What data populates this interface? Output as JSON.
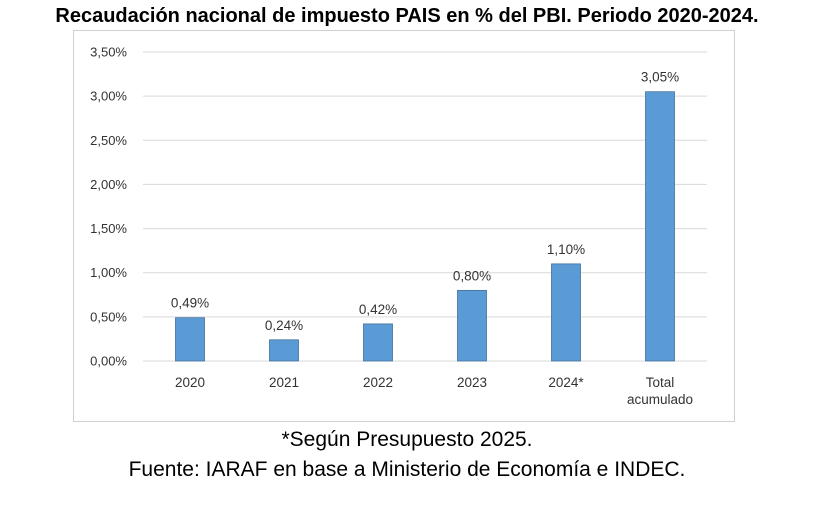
{
  "chart_data": {
    "type": "bar",
    "title": "Recaudación nacional de impuesto PAIS en % del PBI. Periodo 2020-2024.",
    "categories": [
      "2020",
      "2021",
      "2022",
      "2023",
      "2024*",
      "Total acumulado"
    ],
    "values": [
      0.49,
      0.24,
      0.42,
      0.8,
      1.1,
      3.05
    ],
    "data_labels": [
      "0,49%",
      "0,24%",
      "0,42%",
      "0,80%",
      "1,10%",
      "3,05%"
    ],
    "ylim": [
      0,
      3.5
    ],
    "yticks": [
      0,
      0.5,
      1,
      1.5,
      2,
      2.5,
      3,
      3.5
    ],
    "ytick_labels": [
      "0,00%",
      "0,50%",
      "1,00%",
      "1,50%",
      "2,00%",
      "2,50%",
      "3,00%",
      "3,50%"
    ],
    "xlabel": "",
    "ylabel": "",
    "grid": true,
    "bar_color": "#5B9BD5",
    "bar_edge_color": "#41719C"
  },
  "notes": {
    "footnote": "*Según Presupuesto 2025.",
    "source": "Fuente: IARAF en base a Ministerio de Economía e INDEC."
  }
}
